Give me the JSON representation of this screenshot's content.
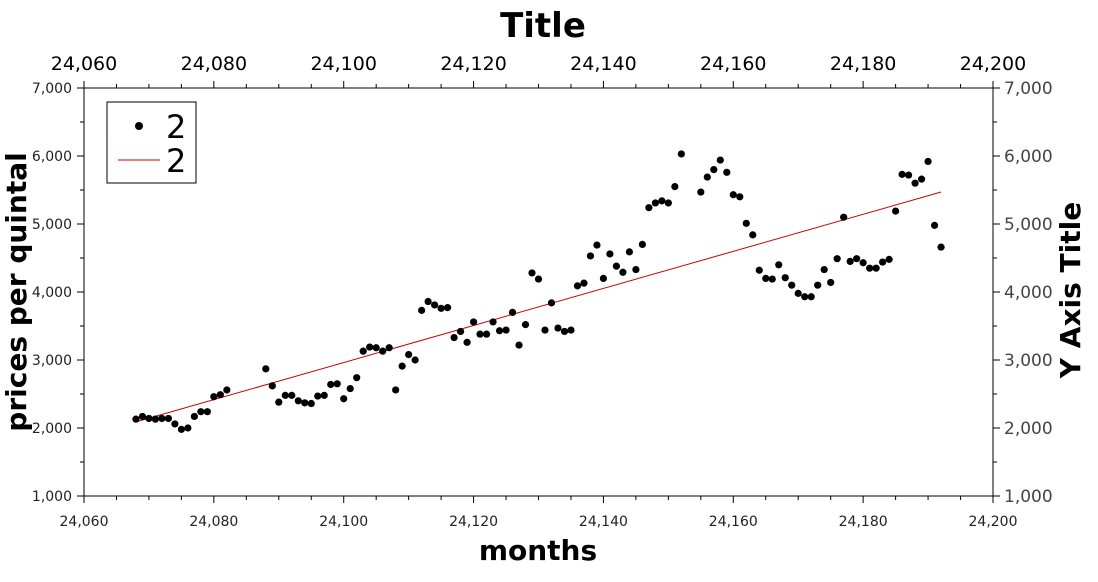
{
  "chart_data": {
    "type": "scatter",
    "title": "Title",
    "xlabel": "months",
    "ylabel": "prices per quintal",
    "y2label": "Y Axis Title",
    "xlim": [
      24060,
      24200
    ],
    "ylim": [
      1000,
      7000
    ],
    "x_ticks": [
      "24,060",
      "24,080",
      "24,100",
      "24,120",
      "24,140",
      "24,160",
      "24,180",
      "24,200"
    ],
    "x_tick_values": [
      24060,
      24080,
      24100,
      24120,
      24140,
      24160,
      24180,
      24200
    ],
    "y_ticks": [
      "1,000",
      "2,000",
      "3,000",
      "4,000",
      "5,000",
      "6,000",
      "7,000"
    ],
    "y_tick_values": [
      1000,
      2000,
      3000,
      4000,
      5000,
      6000,
      7000
    ],
    "grid": false,
    "legend_position": "top-left",
    "series": [
      {
        "name": "2",
        "kind": "scatter",
        "color": "#000000",
        "x": [
          24068,
          24069,
          24070,
          24071,
          24072,
          24073,
          24074,
          24075,
          24076,
          24077,
          24078,
          24079,
          24080,
          24081,
          24082,
          24088,
          24089,
          24090,
          24091,
          24092,
          24093,
          24094,
          24095,
          24096,
          24097,
          24098,
          24099,
          24100,
          24101,
          24102,
          24103,
          24104,
          24105,
          24106,
          24107,
          24108,
          24109,
          24110,
          24111,
          24112,
          24113,
          24114,
          24115,
          24116,
          24117,
          24118,
          24119,
          24120,
          24121,
          24122,
          24123,
          24124,
          24125,
          24126,
          24127,
          24128,
          24129,
          24130,
          24131,
          24132,
          24133,
          24134,
          24135,
          24136,
          24137,
          24138,
          24139,
          24140,
          24141,
          24142,
          24143,
          24144,
          24145,
          24146,
          24147,
          24148,
          24149,
          24150,
          24151,
          24152,
          24155,
          24156,
          24157,
          24158,
          24159,
          24160,
          24161,
          24162,
          24163,
          24164,
          24165,
          24166,
          24167,
          24168,
          24169,
          24170,
          24171,
          24172,
          24173,
          24174,
          24175,
          24176,
          24177,
          24178,
          24179,
          24180,
          24181,
          24182,
          24183,
          24184,
          24185,
          24186,
          24187,
          24188,
          24189,
          24190,
          24191,
          24192
        ],
        "y": [
          2130,
          2170,
          2140,
          2130,
          2140,
          2140,
          2060,
          1980,
          2000,
          2170,
          2240,
          2240,
          2460,
          2490,
          2560,
          2870,
          2620,
          2380,
          2480,
          2480,
          2400,
          2370,
          2360,
          2470,
          2480,
          2640,
          2650,
          2430,
          2580,
          2740,
          3130,
          3190,
          3180,
          3130,
          3180,
          2560,
          2910,
          3080,
          3000,
          3730,
          3860,
          3810,
          3760,
          3770,
          3330,
          3420,
          3260,
          3560,
          3380,
          3380,
          3560,
          3430,
          3440,
          3700,
          3220,
          3520,
          4280,
          4190,
          3440,
          3840,
          3470,
          3420,
          3440,
          4090,
          4130,
          4530,
          4690,
          4200,
          4560,
          4380,
          4290,
          4590,
          4330,
          4700,
          5240,
          5310,
          5340,
          5310,
          5550,
          6030,
          5470,
          5690,
          5800,
          5940,
          5760,
          5430,
          5400,
          5010,
          4840,
          4320,
          4200,
          4190,
          4400,
          4210,
          4100,
          3980,
          3930,
          3930,
          4100,
          4330,
          4140,
          4490,
          5100,
          4450,
          4490,
          4430,
          4350,
          4350,
          4440,
          4480,
          5190,
          5730,
          5720,
          5600,
          5660,
          5920,
          4980,
          4660
        ]
      },
      {
        "name": "2",
        "kind": "line",
        "color": "#cc0000",
        "x": [
          24068,
          24192
        ],
        "y": [
          2090,
          5470
        ]
      }
    ]
  }
}
